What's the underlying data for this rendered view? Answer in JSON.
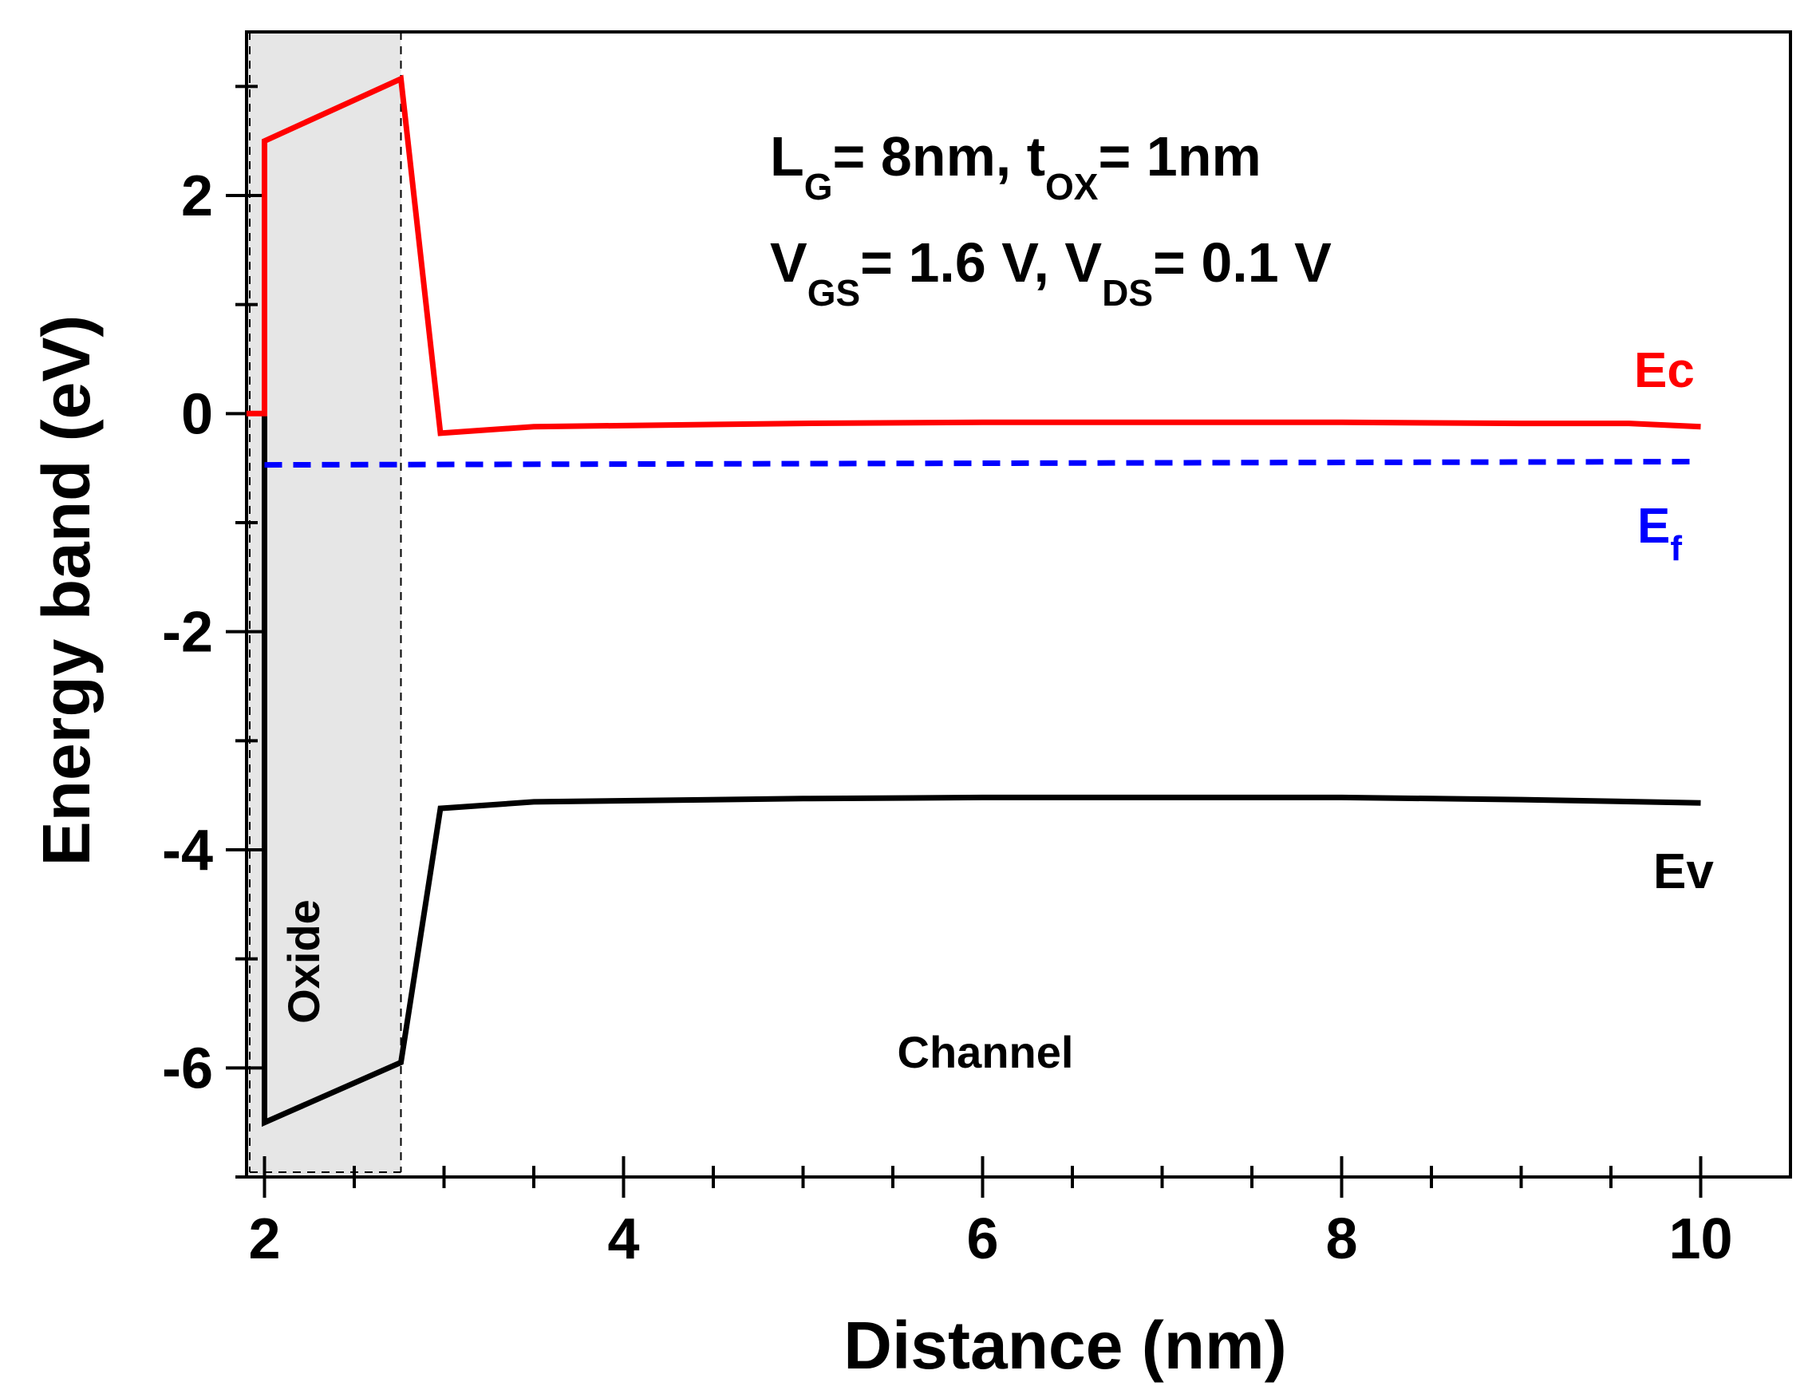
{
  "chart_data": {
    "type": "line",
    "xlabel": "Distance (nm)",
    "ylabel": "Energy band (eV)",
    "xlim": [
      1.9,
      10.5
    ],
    "ylim": [
      -7,
      3.5
    ],
    "xticks": [
      2,
      4,
      6,
      8,
      10
    ],
    "yticks": [
      -6,
      -4,
      -2,
      0,
      2
    ],
    "xtick_labels": [
      "2",
      "4",
      "6",
      "8",
      "10"
    ],
    "ytick_labels": [
      "-6",
      "-4",
      "-2",
      "0",
      "2"
    ],
    "annotation": {
      "line1": {
        "L": "L",
        "L_sub": "G",
        "L_rest": "= 8nm, t",
        "t_sub": "OX",
        "t_rest": "= 1nm"
      },
      "line2": {
        "V1": "V",
        "V1_sub": "GS",
        "V1_rest": "= 1.6 V, V",
        "V2_sub": "DS",
        "V2_rest": "= 0.1 V"
      }
    },
    "regions": {
      "oxide": {
        "label": "Oxide",
        "x_start": 1.9,
        "x_end": 2.76,
        "color": "#e6e6e6"
      },
      "channel": {
        "label": "Channel"
      }
    },
    "series": [
      {
        "name": "Ec",
        "label": "Ec",
        "color": "#ff0000",
        "style": "solid",
        "x": [
          1.9,
          2.0,
          2.0,
          2.76,
          2.98,
          3.5,
          5,
          6,
          7,
          8,
          9,
          9.6,
          10.0
        ],
        "y": [
          0.0,
          0.0,
          2.5,
          3.07,
          -0.18,
          -0.12,
          -0.09,
          -0.08,
          -0.08,
          -0.08,
          -0.09,
          -0.09,
          -0.12
        ]
      },
      {
        "name": "Ef",
        "label": "E",
        "label_sub": "f",
        "color": "#0000ff",
        "style": "dashed",
        "x": [
          2.0,
          10.0
        ],
        "y": [
          -0.47,
          -0.44
        ]
      },
      {
        "name": "Ev",
        "label": "Ev",
        "color": "#000000",
        "style": "solid",
        "x": [
          2.0,
          2.0,
          2.76,
          2.98,
          3.5,
          5,
          6,
          7,
          8,
          9,
          10.0
        ],
        "y": [
          0.0,
          -6.5,
          -5.95,
          -3.62,
          -3.56,
          -3.53,
          -3.52,
          -3.52,
          -3.52,
          -3.54,
          -3.57
        ]
      }
    ]
  }
}
